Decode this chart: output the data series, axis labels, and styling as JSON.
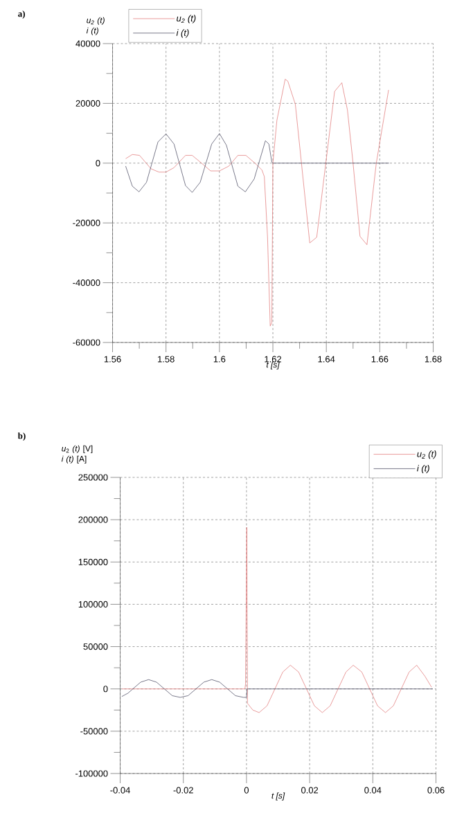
{
  "chart_data": [
    {
      "type": "line",
      "title": "a)",
      "xlabel": "t [s]",
      "ylabel": "u$_{2}$ (t) i (t)",
      "series": [
        {
          "name": "u$_{2}$ (t)",
          "color": "#e07070",
          "x": [
            1.5649,
            1.5674,
            1.5701,
            1.5744,
            1.5774,
            1.58,
            1.583,
            1.5873,
            1.5898,
            1.5933,
            1.5967,
            1.6,
            1.6035,
            1.6069,
            1.6099,
            1.6138,
            1.6159,
            1.6168,
            1.618,
            1.619,
            1.6196,
            1.62,
            1.6215,
            1.6246,
            1.6256,
            1.6284,
            1.6338,
            1.6364,
            1.6398,
            1.6431,
            1.6458,
            1.6479,
            1.65,
            1.6526,
            1.6552,
            1.6587,
            1.6633
          ],
          "values": [
            1500,
            2900,
            2600,
            -1900,
            -3000,
            -3000,
            -1500,
            2600,
            2600,
            0,
            -2600,
            -2600,
            -1000,
            2600,
            2600,
            -400,
            -2300,
            -4500,
            -24800,
            -54500,
            -53400,
            0,
            14300,
            28100,
            27400,
            19700,
            -26700,
            -24800,
            0,
            24000,
            26900,
            17800,
            0,
            -24500,
            -27300,
            0,
            24500
          ]
        },
        {
          "name": "i (t)",
          "color": "#404058",
          "x": [
            1.5649,
            1.5674,
            1.5699,
            1.5727,
            1.577,
            1.58,
            1.583,
            1.5873,
            1.5898,
            1.5928,
            1.5971,
            1.6,
            1.6026,
            1.6069,
            1.6097,
            1.613,
            1.6172,
            1.6185,
            1.6196,
            1.62,
            1.6635
          ],
          "values": [
            -1000,
            -7700,
            -9600,
            -6400,
            7100,
            9800,
            6400,
            -7500,
            -9800,
            -6400,
            6400,
            9900,
            6000,
            -7700,
            -9600,
            -5300,
            7500,
            6400,
            400,
            0,
            0
          ]
        }
      ],
      "xlim": [
        1.56,
        1.68
      ],
      "ylim": [
        -60000,
        40000
      ],
      "xticks": [
        1.56,
        {
          "value": 1.57,
          "label": null
        },
        1.58,
        {
          "value": 1.59,
          "label": null
        },
        1.6,
        {
          "value": 1.61,
          "label": null
        },
        1.62,
        {
          "value": 1.63,
          "label": null
        },
        1.64,
        {
          "value": 1.65,
          "label": null
        },
        1.66,
        {
          "value": 1.67,
          "label": null
        },
        1.68
      ],
      "yticks": [
        -60000,
        {
          "value": -50000,
          "label": null
        },
        -40000,
        {
          "value": -30000,
          "label": null
        },
        -20000,
        {
          "value": -10000,
          "label": null
        },
        0,
        {
          "value": 10000,
          "label": null
        },
        20000,
        {
          "value": 30000,
          "label": null
        },
        40000
      ],
      "grid": true,
      "legend": "top left"
    },
    {
      "type": "line",
      "title": "b)",
      "xlabel": "t [s]",
      "ylabel": "*u*$_{2}$ *(t)* [V] *i (t)* [A]",
      "series": [
        {
          "name": "u$_{2}$ (t)",
          "color": "#e07070",
          "x": [
            -0.0395,
            -0.0005,
            -0.0003,
            0.0001,
            0.0003,
            0.002,
            0.004,
            0.0065,
            0.009,
            0.0115,
            0.0139,
            0.0165,
            0.019,
            0.0215,
            0.024,
            0.0265,
            0.029,
            0.0315,
            0.0338,
            0.0365,
            0.039,
            0.0415,
            0.044,
            0.0465,
            0.049,
            0.0515,
            0.0539,
            0.0565,
            0.0586
          ],
          "values": [
            0,
            0,
            6000,
            191000,
            -17000,
            -25000,
            -28000,
            -20000,
            0,
            20000,
            28000,
            20000,
            0,
            -20000,
            -28000,
            -20000,
            0,
            20000,
            28000,
            20000,
            0,
            -20000,
            -28000,
            -20000,
            0,
            20000,
            28000,
            15000,
            2000
          ]
        },
        {
          "name": "i (t)",
          "color": "#404058",
          "x": [
            -0.0395,
            -0.0375,
            -0.036,
            -0.0335,
            -0.031,
            -0.0285,
            -0.026,
            -0.0235,
            -0.021,
            -0.0185,
            -0.016,
            -0.0135,
            -0.011,
            -0.0085,
            -0.006,
            -0.0035,
            -0.001,
            0,
            0.0002,
            0.059
          ],
          "values": [
            -9000,
            -5000,
            0,
            8000,
            11000,
            8000,
            0,
            -8000,
            -10000,
            -8000,
            0,
            8000,
            11000,
            8000,
            0,
            -8000,
            -10000,
            -10000,
            0,
            0
          ]
        }
      ],
      "xlim": [
        -0.04,
        0.06
      ],
      "ylim": [
        -100000,
        250000
      ],
      "xticks": [
        -0.04,
        -0.02,
        0,
        0.02,
        0.04,
        0.06
      ],
      "yticks": [
        -100000,
        {
          "value": -75000,
          "label": null
        },
        -50000,
        {
          "value": -25000,
          "label": null
        },
        0,
        {
          "value": 25000,
          "label": null
        },
        50000,
        {
          "value": 75000,
          "label": null
        },
        100000,
        {
          "value": 125000,
          "label": null
        },
        150000,
        {
          "value": 175000,
          "label": null
        },
        200000,
        {
          "value": 225000,
          "label": null
        },
        250000
      ],
      "grid": true,
      "legend": "top right"
    }
  ]
}
